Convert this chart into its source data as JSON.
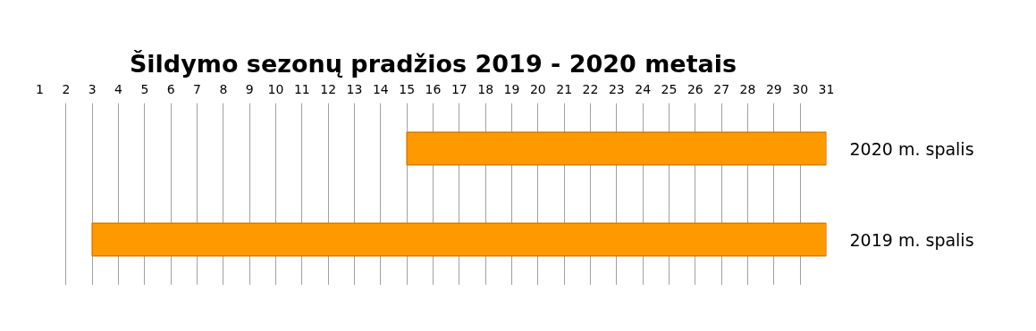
{
  "chart_data": {
    "type": "bar",
    "orientation": "horizontal",
    "title": "Šildymo sezonų pradžios 2019 - 2020 metais",
    "categories": [
      "2020 m. spalis",
      "2019 m. spalis"
    ],
    "base": [
      31,
      31
    ],
    "values": [
      -16,
      -28
    ],
    "color": "#ff9900",
    "xlim": [
      1,
      31
    ],
    "xticks": [
      1,
      2,
      3,
      4,
      5,
      6,
      7,
      8,
      9,
      10,
      11,
      12,
      13,
      14,
      15,
      16,
      17,
      18,
      19,
      20,
      21,
      22,
      23,
      24,
      25,
      26,
      27,
      28,
      29,
      30,
      31
    ],
    "grid": "x"
  }
}
